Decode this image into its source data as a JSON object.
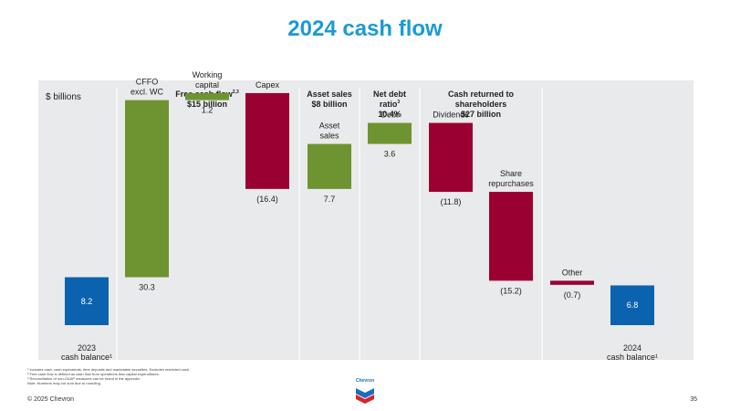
{
  "page": {
    "title": "2024 cash flow",
    "copyright": "© 2025 Chevron",
    "page_number": "35",
    "logo_text": "Chevron"
  },
  "footnotes": [
    "¹ Includes cash, cash equivalents, time deposits and marketable securities. Excludes restricted cash",
    "² Free cash flow is defined as cash flow from operations less capital expenditures.",
    "³ Reconciliation of non-GAAP measures can be found in the appendix.",
    "Note: Numbers may not sum due to rounding."
  ],
  "colors": {
    "blue": "#0b63b0",
    "green": "#6e9431",
    "red": "#9b0032",
    "title": "#1a9ad6",
    "panel": "#e9eaeb"
  },
  "chart_data": {
    "type": "bar",
    "subtype": "waterfall",
    "unit_label": "$ billions",
    "groups": [
      {
        "title": "Free cash flow",
        "superscript": "2,3",
        "subtitle": "$15 billion"
      },
      {
        "title": "Asset sales",
        "subtitle": "$8 billion"
      },
      {
        "title": "Net debt",
        "title2": "ratio",
        "superscript": "3",
        "subtitle": "10.4%"
      },
      {
        "title": "Cash returned to",
        "title2": "shareholders",
        "subtitle": "$27 billion"
      }
    ],
    "bars": [
      {
        "label": [
          "2023",
          "cash balance¹"
        ],
        "value": 8.2,
        "display": "8.2",
        "kind": "total",
        "color": "blue"
      },
      {
        "label": [
          "CFFO",
          "excl. WC"
        ],
        "value": 30.3,
        "display": "30.3",
        "kind": "delta",
        "color": "green"
      },
      {
        "label": [
          "Working",
          "capital"
        ],
        "value": 1.2,
        "display": "1.2",
        "kind": "delta",
        "color": "green"
      },
      {
        "label": [
          "Capex"
        ],
        "value": -16.4,
        "display": "(16.4)",
        "kind": "delta",
        "color": "red"
      },
      {
        "label": [
          "Asset",
          "sales"
        ],
        "value": 7.7,
        "display": "7.7",
        "kind": "delta",
        "color": "green"
      },
      {
        "label": [
          "Debt"
        ],
        "value": 3.6,
        "display": "3.6",
        "kind": "delta",
        "color": "green"
      },
      {
        "label": [
          "Dividends"
        ],
        "value": -11.8,
        "display": "(11.8)",
        "kind": "delta",
        "color": "red"
      },
      {
        "label": [
          "Share",
          "repurchases"
        ],
        "value": -15.2,
        "display": "(15.2)",
        "kind": "delta",
        "color": "red"
      },
      {
        "label": [
          "Other"
        ],
        "value": -0.7,
        "display": "(0.7)",
        "kind": "delta",
        "color": "red"
      },
      {
        "label": [
          "2024",
          "cash balance¹"
        ],
        "value": 6.8,
        "display": "6.8",
        "kind": "total",
        "color": "blue"
      }
    ]
  }
}
